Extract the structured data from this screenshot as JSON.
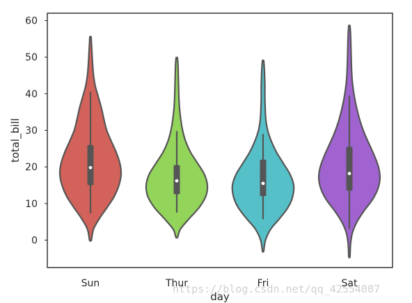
{
  "watermark": "https://blog.csdn.net/qq_42554007",
  "chart_data": {
    "type": "violin",
    "xlabel": "day",
    "ylabel": "total_bill",
    "ylim": [
      -7.5,
      62
    ],
    "y_ticks": [
      0,
      10,
      20,
      30,
      40,
      50,
      60
    ],
    "grid": false,
    "legend": "none",
    "categories": [
      "Sun",
      "Thur",
      "Fri",
      "Sat"
    ],
    "series": [
      {
        "category": "Sun",
        "color": "#d2625a",
        "min": 0,
        "max": 55.5,
        "q1": 15,
        "median": 19.8,
        "q3": 26,
        "whisker_low": 7.3,
        "whisker_high": 40.5,
        "density": [
          [
            0,
            0.03
          ],
          [
            3,
            0.1
          ],
          [
            6,
            0.3
          ],
          [
            9,
            0.55
          ],
          [
            12,
            0.78
          ],
          [
            15,
            0.93
          ],
          [
            18,
            1.0
          ],
          [
            21,
            0.96
          ],
          [
            24,
            0.84
          ],
          [
            27,
            0.68
          ],
          [
            30,
            0.53
          ],
          [
            33,
            0.44
          ],
          [
            36,
            0.36
          ],
          [
            39,
            0.26
          ],
          [
            42,
            0.16
          ],
          [
            45,
            0.1
          ],
          [
            48,
            0.07
          ],
          [
            51,
            0.05
          ],
          [
            54,
            0.03
          ],
          [
            55.5,
            0.02
          ]
        ]
      },
      {
        "category": "Thur",
        "color": "#93d45b",
        "min": 0.8,
        "max": 49.8,
        "q1": 12.5,
        "median": 16.2,
        "q3": 20.5,
        "whisker_low": 7.5,
        "whisker_high": 29.8,
        "density": [
          [
            0.8,
            0.03
          ],
          [
            3,
            0.12
          ],
          [
            6,
            0.42
          ],
          [
            9,
            0.74
          ],
          [
            12,
            0.95
          ],
          [
            15,
            1.0
          ],
          [
            18,
            0.9
          ],
          [
            21,
            0.68
          ],
          [
            24,
            0.45
          ],
          [
            27,
            0.29
          ],
          [
            30,
            0.19
          ],
          [
            33,
            0.13
          ],
          [
            36,
            0.09
          ],
          [
            39,
            0.07
          ],
          [
            42,
            0.06
          ],
          [
            45,
            0.05
          ],
          [
            48,
            0.04
          ],
          [
            49.8,
            0.02
          ]
        ]
      },
      {
        "category": "Fri",
        "color": "#56c0c8",
        "min": -3,
        "max": 49,
        "q1": 12,
        "median": 15.5,
        "q3": 22,
        "whisker_low": 5.7,
        "whisker_high": 29,
        "density": [
          [
            -3,
            0.02
          ],
          [
            0,
            0.08
          ],
          [
            3,
            0.25
          ],
          [
            6,
            0.55
          ],
          [
            9,
            0.82
          ],
          [
            12,
            0.97
          ],
          [
            15,
            1.0
          ],
          [
            18,
            0.88
          ],
          [
            21,
            0.66
          ],
          [
            24,
            0.44
          ],
          [
            27,
            0.27
          ],
          [
            30,
            0.15
          ],
          [
            33,
            0.09
          ],
          [
            36,
            0.07
          ],
          [
            39,
            0.06
          ],
          [
            42,
            0.06
          ],
          [
            45,
            0.05
          ],
          [
            47,
            0.04
          ],
          [
            49,
            0.02
          ]
        ]
      },
      {
        "category": "Sat",
        "color": "#a063cf",
        "min": -4.5,
        "max": 58.5,
        "q1": 13.5,
        "median": 18.2,
        "q3": 25.5,
        "whisker_low": 3,
        "whisker_high": 39.5,
        "density": [
          [
            -4.5,
            0.02
          ],
          [
            -1,
            0.04
          ],
          [
            2,
            0.1
          ],
          [
            5,
            0.25
          ],
          [
            8,
            0.48
          ],
          [
            11,
            0.75
          ],
          [
            14,
            0.93
          ],
          [
            17,
            1.0
          ],
          [
            20,
            0.95
          ],
          [
            23,
            0.82
          ],
          [
            26,
            0.66
          ],
          [
            29,
            0.5
          ],
          [
            32,
            0.37
          ],
          [
            35,
            0.27
          ],
          [
            38,
            0.19
          ],
          [
            41,
            0.13
          ],
          [
            44,
            0.09
          ],
          [
            47,
            0.07
          ],
          [
            50,
            0.06
          ],
          [
            53,
            0.05
          ],
          [
            56,
            0.04
          ],
          [
            58.5,
            0.02
          ]
        ]
      }
    ]
  }
}
